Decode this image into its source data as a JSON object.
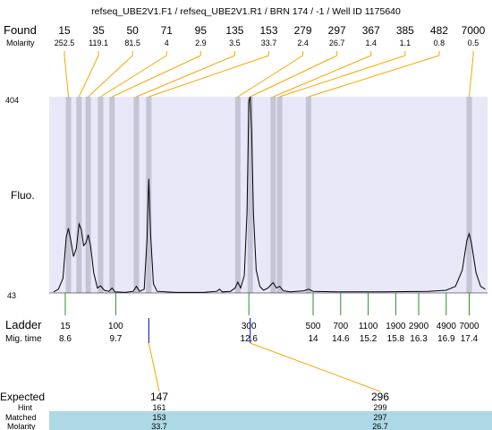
{
  "chart_data": {
    "type": "line",
    "title": "refseq_UBE2V1.F1 / refseq_UBE2V1.R1 / BRN 174 / -1 / Well ID 1175640",
    "ylabel": "Fluo.",
    "ylim": [
      43,
      404
    ],
    "found_label": "Found",
    "molarity_label": "Molarity",
    "found_peaks": [
      {
        "size": "15",
        "molarity": "252.5",
        "time": 8.67
      },
      {
        "size": "35",
        "molarity": "119.1",
        "time": 8.9
      },
      {
        "size": "50",
        "molarity": "81.5",
        "time": 9.1
      },
      {
        "size": "71",
        "molarity": "4",
        "time": 9.37
      },
      {
        "size": "95",
        "molarity": "2.9",
        "time": 9.62
      },
      {
        "size": "135",
        "molarity": "3.5",
        "time": 10.15
      },
      {
        "size": "153",
        "molarity": "33.7",
        "time": 10.42
      },
      {
        "size": "279",
        "molarity": "2.4",
        "time": 12.36
      },
      {
        "size": "297",
        "molarity": "26.7",
        "time": 12.63
      },
      {
        "size": "367",
        "molarity": "1.4",
        "time": 13.13
      },
      {
        "size": "385",
        "molarity": "1.1",
        "time": 13.27
      },
      {
        "size": "482",
        "molarity": "0.8",
        "time": 13.9
      },
      {
        "size": "7000",
        "molarity": "0.5",
        "time": 17.4
      }
    ],
    "ladder_label": "Ladder",
    "migtime_label": "Mig. time",
    "ladder": [
      {
        "size": "15",
        "time": "8.6"
      },
      {
        "size": "100",
        "time": "9.7"
      },
      {
        "size": "300",
        "time": "12.6"
      },
      {
        "size": "500",
        "time": "14"
      },
      {
        "size": "700",
        "time": "14.6"
      },
      {
        "size": "1100",
        "time": "15.2"
      },
      {
        "size": "1900",
        "time": "15.8"
      },
      {
        "size": "2900",
        "time": "16.3"
      },
      {
        "size": "4900",
        "time": "16.9"
      },
      {
        "size": "7000",
        "time": "17.4"
      }
    ],
    "electropherogram": [
      [
        8.35,
        45
      ],
      [
        8.45,
        50
      ],
      [
        8.55,
        70
      ],
      [
        8.62,
        145
      ],
      [
        8.67,
        162
      ],
      [
        8.72,
        140
      ],
      [
        8.78,
        110
      ],
      [
        8.84,
        125
      ],
      [
        8.9,
        170
      ],
      [
        8.95,
        160
      ],
      [
        9.0,
        130
      ],
      [
        9.05,
        135
      ],
      [
        9.1,
        150
      ],
      [
        9.15,
        130
      ],
      [
        9.22,
        80
      ],
      [
        9.3,
        52
      ],
      [
        9.37,
        56
      ],
      [
        9.45,
        48
      ],
      [
        9.55,
        46
      ],
      [
        9.62,
        52
      ],
      [
        9.68,
        45
      ],
      [
        9.9,
        44
      ],
      [
        10.08,
        46
      ],
      [
        10.15,
        55
      ],
      [
        10.22,
        46
      ],
      [
        10.32,
        50
      ],
      [
        10.38,
        140
      ],
      [
        10.42,
        253
      ],
      [
        10.46,
        150
      ],
      [
        10.52,
        60
      ],
      [
        10.6,
        46
      ],
      [
        11.0,
        44
      ],
      [
        11.6,
        44
      ],
      [
        11.9,
        46
      ],
      [
        11.96,
        50
      ],
      [
        12.02,
        45
      ],
      [
        12.2,
        46
      ],
      [
        12.3,
        52
      ],
      [
        12.36,
        63
      ],
      [
        12.42,
        52
      ],
      [
        12.5,
        75
      ],
      [
        12.56,
        190
      ],
      [
        12.6,
        395
      ],
      [
        12.63,
        404
      ],
      [
        12.66,
        340
      ],
      [
        12.7,
        190
      ],
      [
        12.76,
        85
      ],
      [
        12.84,
        55
      ],
      [
        12.92,
        48
      ],
      [
        13.02,
        52
      ],
      [
        13.08,
        58
      ],
      [
        13.13,
        62
      ],
      [
        13.2,
        52
      ],
      [
        13.27,
        55
      ],
      [
        13.35,
        47
      ],
      [
        13.5,
        45
      ],
      [
        13.8,
        47
      ],
      [
        13.9,
        50
      ],
      [
        14.0,
        46
      ],
      [
        14.5,
        45
      ],
      [
        15.5,
        45
      ],
      [
        16.5,
        46
      ],
      [
        16.9,
        48
      ],
      [
        17.1,
        55
      ],
      [
        17.25,
        85
      ],
      [
        17.35,
        140
      ],
      [
        17.4,
        152
      ],
      [
        17.45,
        135
      ],
      [
        17.55,
        80
      ],
      [
        17.65,
        55
      ],
      [
        17.75,
        50
      ]
    ],
    "expected_label": "Expected",
    "hint_label": "Hint",
    "matched_label": "Matched",
    "molarity_row_label": "Molarity",
    "expected": [
      {
        "expected": "147",
        "hint": "161",
        "matched": "153",
        "molarity": "33.7",
        "ladder_time": 10.42
      },
      {
        "expected": "296",
        "hint": "299",
        "matched": "297",
        "molarity": "26.7",
        "ladder_time": 12.63
      }
    ],
    "colors": {
      "plot_bg": "#e8e8f8",
      "peak_band": "#c4c4d4",
      "callout_line": "#f5a800",
      "ladder_tick": "#2e8b2e",
      "marker": "#0000cc",
      "table_highlight": "#add8e6",
      "trace": "#000000"
    }
  }
}
